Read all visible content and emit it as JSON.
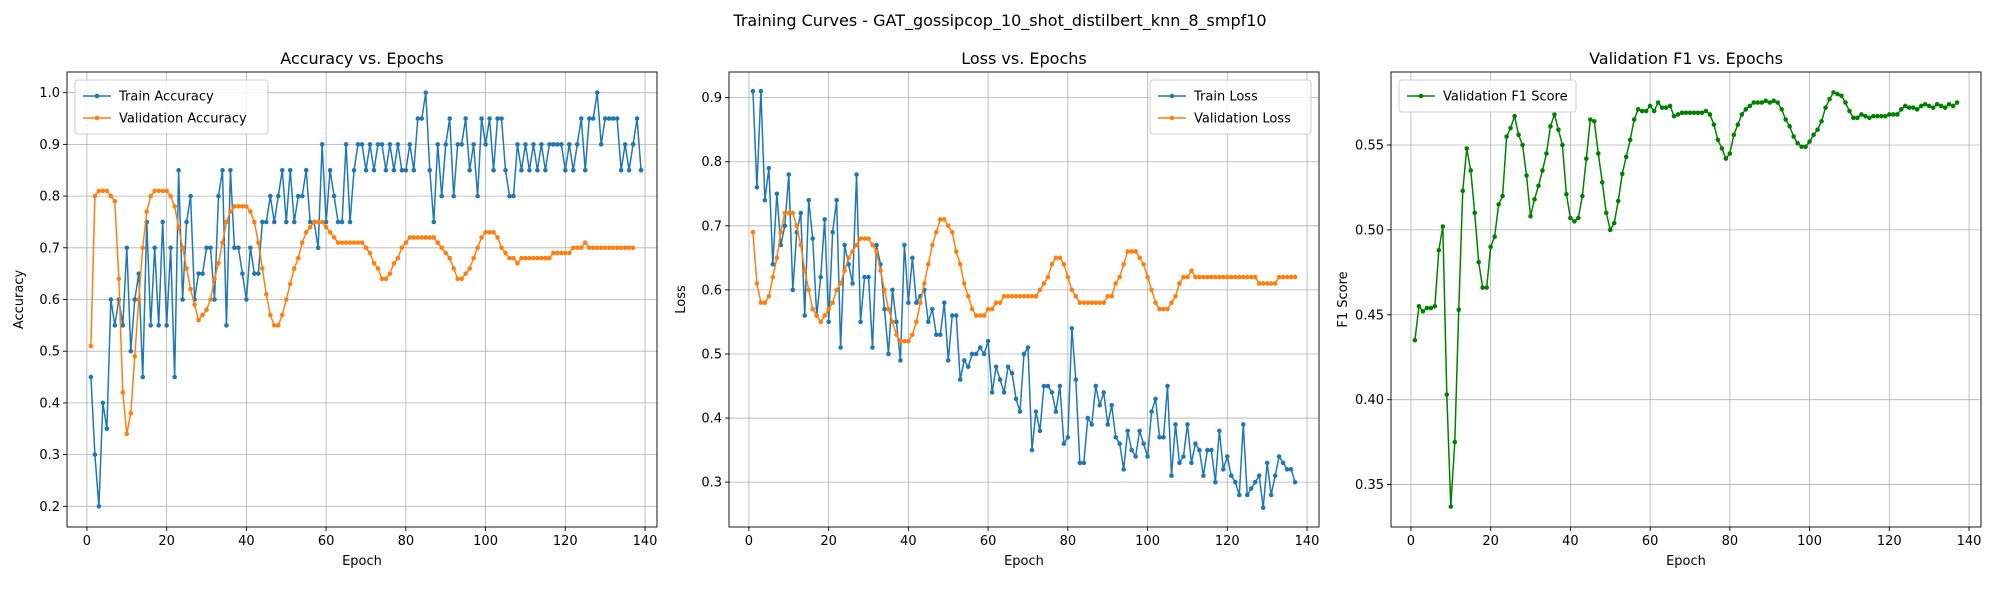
{
  "figure": {
    "suptitle": "Training Curves - GAT_gossipcop_10_shot_distilbert_knn_8_smpf10"
  },
  "colors": {
    "train": "#1f77b4",
    "val": "#ff7f0e",
    "f1": "#008000",
    "grid": "#b0b0b0"
  },
  "chart_data": [
    {
      "type": "line",
      "title": "Accuracy vs. Epochs",
      "xlabel": "Epoch",
      "ylabel": "Accuracy",
      "xlim": [
        -5,
        143
      ],
      "ylim": [
        0.16,
        1.04
      ],
      "xticks": [
        0,
        20,
        40,
        60,
        80,
        100,
        120,
        140
      ],
      "yticks": [
        0.2,
        0.3,
        0.4,
        0.5,
        0.6,
        0.7,
        0.8,
        0.9,
        1.0
      ],
      "ytick_labels": [
        "0.2",
        "0.3",
        "0.4",
        "0.5",
        "0.6",
        "0.7",
        "0.8",
        "0.9",
        "1.0"
      ],
      "grid": true,
      "legend_position": "upper left",
      "x_start": 1,
      "series": [
        {
          "name": "Train Accuracy",
          "color": "#1f77b4",
          "values": [
            0.45,
            0.3,
            0.2,
            0.4,
            0.35,
            0.6,
            0.55,
            0.6,
            0.55,
            0.7,
            0.5,
            0.6,
            0.65,
            0.45,
            0.75,
            0.55,
            0.7,
            0.55,
            0.75,
            0.55,
            0.7,
            0.45,
            0.85,
            0.6,
            0.75,
            0.8,
            0.6,
            0.65,
            0.65,
            0.7,
            0.7,
            0.6,
            0.8,
            0.85,
            0.55,
            0.85,
            0.7,
            0.7,
            0.65,
            0.6,
            0.7,
            0.65,
            0.65,
            0.75,
            0.75,
            0.8,
            0.75,
            0.8,
            0.85,
            0.75,
            0.85,
            0.75,
            0.8,
            0.8,
            0.85,
            0.75,
            0.75,
            0.7,
            0.9,
            0.75,
            0.85,
            0.8,
            0.75,
            0.75,
            0.9,
            0.75,
            0.85,
            0.9,
            0.9,
            0.85,
            0.9,
            0.85,
            0.9,
            0.9,
            0.85,
            0.9,
            0.85,
            0.9,
            0.85,
            0.85,
            0.9,
            0.85,
            0.95,
            0.95,
            1.0,
            0.85,
            0.75,
            0.9,
            0.8,
            0.9,
            0.95,
            0.8,
            0.9,
            0.9,
            0.95,
            0.85,
            0.9,
            0.8,
            0.95,
            0.9,
            0.95,
            0.85,
            0.95,
            0.95,
            0.85,
            0.8,
            0.8,
            0.9,
            0.85,
            0.9,
            0.85,
            0.9,
            0.85,
            0.9,
            0.85,
            0.9,
            0.9,
            0.9,
            0.9,
            0.85,
            0.9,
            0.85,
            0.9,
            0.95,
            0.85,
            0.95,
            0.95,
            1.0,
            0.9,
            0.95,
            0.95,
            0.95,
            0.95,
            0.85,
            0.9,
            0.85,
            0.9,
            0.95,
            0.85
          ]
        },
        {
          "name": "Validation Accuracy",
          "color": "#ff7f0e",
          "values": [
            0.51,
            0.8,
            0.81,
            0.81,
            0.81,
            0.8,
            0.79,
            0.64,
            0.42,
            0.34,
            0.38,
            0.49,
            0.6,
            0.7,
            0.77,
            0.8,
            0.81,
            0.81,
            0.81,
            0.81,
            0.8,
            0.78,
            0.74,
            0.7,
            0.66,
            0.62,
            0.59,
            0.56,
            0.57,
            0.58,
            0.6,
            0.64,
            0.67,
            0.71,
            0.75,
            0.77,
            0.78,
            0.78,
            0.78,
            0.78,
            0.77,
            0.75,
            0.71,
            0.66,
            0.61,
            0.57,
            0.55,
            0.55,
            0.57,
            0.6,
            0.63,
            0.66,
            0.68,
            0.71,
            0.73,
            0.74,
            0.75,
            0.75,
            0.75,
            0.74,
            0.73,
            0.72,
            0.71,
            0.71,
            0.71,
            0.71,
            0.71,
            0.71,
            0.71,
            0.7,
            0.69,
            0.67,
            0.66,
            0.64,
            0.64,
            0.65,
            0.67,
            0.68,
            0.7,
            0.71,
            0.72,
            0.72,
            0.72,
            0.72,
            0.72,
            0.72,
            0.72,
            0.71,
            0.7,
            0.69,
            0.68,
            0.66,
            0.64,
            0.64,
            0.65,
            0.66,
            0.68,
            0.7,
            0.72,
            0.73,
            0.73,
            0.73,
            0.72,
            0.7,
            0.69,
            0.68,
            0.68,
            0.67,
            0.68,
            0.68,
            0.68,
            0.68,
            0.68,
            0.68,
            0.68,
            0.68,
            0.69,
            0.69,
            0.69,
            0.69,
            0.69,
            0.7,
            0.7,
            0.7,
            0.71,
            0.7,
            0.7,
            0.7,
            0.7,
            0.7,
            0.7,
            0.7,
            0.7,
            0.7,
            0.7,
            0.7,
            0.7
          ]
        }
      ]
    },
    {
      "type": "line",
      "title": "Loss vs. Epochs",
      "xlabel": "Epoch",
      "ylabel": "Loss",
      "xlim": [
        -5,
        143
      ],
      "ylim": [
        0.23,
        0.94
      ],
      "xticks": [
        0,
        20,
        40,
        60,
        80,
        100,
        120,
        140
      ],
      "yticks": [
        0.3,
        0.4,
        0.5,
        0.6,
        0.7,
        0.8,
        0.9
      ],
      "ytick_labels": [
        "0.3",
        "0.4",
        "0.5",
        "0.6",
        "0.7",
        "0.8",
        "0.9"
      ],
      "grid": true,
      "legend_position": "upper right",
      "x_start": 1,
      "series": [
        {
          "name": "Train Loss",
          "color": "#1f77b4",
          "values": [
            0.91,
            0.76,
            0.91,
            0.74,
            0.79,
            0.64,
            0.75,
            0.67,
            0.7,
            0.78,
            0.6,
            0.69,
            0.72,
            0.56,
            0.74,
            0.68,
            0.56,
            0.62,
            0.71,
            0.55,
            0.69,
            0.74,
            0.51,
            0.67,
            0.64,
            0.61,
            0.78,
            0.55,
            0.62,
            0.62,
            0.51,
            0.67,
            0.64,
            0.57,
            0.5,
            0.6,
            0.55,
            0.49,
            0.67,
            0.58,
            0.65,
            0.58,
            0.59,
            0.6,
            0.55,
            0.57,
            0.53,
            0.53,
            0.58,
            0.49,
            0.56,
            0.56,
            0.46,
            0.49,
            0.48,
            0.5,
            0.5,
            0.51,
            0.5,
            0.52,
            0.44,
            0.48,
            0.46,
            0.44,
            0.48,
            0.47,
            0.43,
            0.41,
            0.5,
            0.51,
            0.35,
            0.41,
            0.38,
            0.45,
            0.45,
            0.44,
            0.41,
            0.45,
            0.36,
            0.37,
            0.54,
            0.46,
            0.33,
            0.33,
            0.4,
            0.39,
            0.45,
            0.42,
            0.44,
            0.39,
            0.42,
            0.37,
            0.36,
            0.32,
            0.38,
            0.35,
            0.34,
            0.38,
            0.36,
            0.34,
            0.41,
            0.43,
            0.37,
            0.37,
            0.45,
            0.31,
            0.39,
            0.33,
            0.34,
            0.39,
            0.33,
            0.36,
            0.35,
            0.31,
            0.35,
            0.35,
            0.3,
            0.38,
            0.32,
            0.34,
            0.31,
            0.3,
            0.28,
            0.39,
            0.28,
            0.29,
            0.3,
            0.31,
            0.26,
            0.33,
            0.28,
            0.31,
            0.34,
            0.33,
            0.32,
            0.32,
            0.3
          ]
        },
        {
          "name": "Validation Loss",
          "color": "#ff7f0e",
          "values": [
            0.69,
            0.61,
            0.58,
            0.58,
            0.59,
            0.62,
            0.65,
            0.69,
            0.72,
            0.72,
            0.72,
            0.7,
            0.67,
            0.63,
            0.6,
            0.57,
            0.56,
            0.55,
            0.56,
            0.57,
            0.58,
            0.6,
            0.61,
            0.63,
            0.65,
            0.66,
            0.67,
            0.68,
            0.68,
            0.68,
            0.67,
            0.66,
            0.63,
            0.6,
            0.57,
            0.55,
            0.53,
            0.52,
            0.52,
            0.52,
            0.53,
            0.55,
            0.58,
            0.61,
            0.64,
            0.67,
            0.69,
            0.71,
            0.71,
            0.7,
            0.69,
            0.66,
            0.64,
            0.61,
            0.59,
            0.57,
            0.56,
            0.56,
            0.56,
            0.57,
            0.57,
            0.58,
            0.58,
            0.59,
            0.59,
            0.59,
            0.59,
            0.59,
            0.59,
            0.59,
            0.59,
            0.59,
            0.6,
            0.61,
            0.62,
            0.64,
            0.65,
            0.65,
            0.64,
            0.62,
            0.6,
            0.59,
            0.58,
            0.58,
            0.58,
            0.58,
            0.58,
            0.58,
            0.58,
            0.59,
            0.59,
            0.61,
            0.62,
            0.64,
            0.66,
            0.66,
            0.66,
            0.65,
            0.64,
            0.62,
            0.6,
            0.58,
            0.57,
            0.57,
            0.57,
            0.58,
            0.59,
            0.61,
            0.62,
            0.62,
            0.63,
            0.62,
            0.62,
            0.62,
            0.62,
            0.62,
            0.62,
            0.62,
            0.62,
            0.62,
            0.62,
            0.62,
            0.62,
            0.62,
            0.62,
            0.62,
            0.62,
            0.61,
            0.61,
            0.61,
            0.61,
            0.61,
            0.62,
            0.62,
            0.62,
            0.62,
            0.62
          ]
        }
      ]
    },
    {
      "type": "line",
      "title": "Validation F1 vs. Epochs",
      "xlabel": "Epoch",
      "ylabel": "F1 Score",
      "xlim": [
        -5,
        143
      ],
      "ylim": [
        0.325,
        0.593
      ],
      "xticks": [
        0,
        20,
        40,
        60,
        80,
        100,
        120,
        140
      ],
      "yticks": [
        0.35,
        0.4,
        0.45,
        0.5,
        0.55
      ],
      "ytick_labels": [
        "0.35",
        "0.40",
        "0.45",
        "0.50",
        "0.55"
      ],
      "grid": true,
      "legend_position": "upper left",
      "x_start": 1,
      "series": [
        {
          "name": "Validation F1 Score",
          "color": "#008000",
          "values": [
            0.435,
            0.455,
            0.452,
            0.454,
            0.454,
            0.455,
            0.488,
            0.502,
            0.403,
            0.337,
            0.375,
            0.453,
            0.523,
            0.548,
            0.535,
            0.51,
            0.481,
            0.466,
            0.466,
            0.49,
            0.496,
            0.515,
            0.52,
            0.555,
            0.56,
            0.567,
            0.556,
            0.55,
            0.532,
            0.508,
            0.518,
            0.526,
            0.535,
            0.545,
            0.561,
            0.568,
            0.559,
            0.55,
            0.521,
            0.507,
            0.505,
            0.507,
            0.52,
            0.542,
            0.565,
            0.564,
            0.545,
            0.528,
            0.51,
            0.5,
            0.504,
            0.517,
            0.533,
            0.543,
            0.553,
            0.565,
            0.571,
            0.57,
            0.57,
            0.573,
            0.57,
            0.575,
            0.572,
            0.572,
            0.573,
            0.567,
            0.568,
            0.569,
            0.569,
            0.569,
            0.569,
            0.569,
            0.569,
            0.57,
            0.568,
            0.562,
            0.553,
            0.548,
            0.542,
            0.545,
            0.556,
            0.562,
            0.568,
            0.571,
            0.573,
            0.575,
            0.575,
            0.575,
            0.576,
            0.575,
            0.576,
            0.575,
            0.571,
            0.565,
            0.561,
            0.555,
            0.551,
            0.549,
            0.549,
            0.552,
            0.556,
            0.559,
            0.564,
            0.572,
            0.577,
            0.581,
            0.58,
            0.579,
            0.575,
            0.57,
            0.566,
            0.566,
            0.568,
            0.567,
            0.566,
            0.567,
            0.567,
            0.567,
            0.567,
            0.568,
            0.568,
            0.568,
            0.571,
            0.573,
            0.572,
            0.572,
            0.571,
            0.573,
            0.574,
            0.573,
            0.572,
            0.574,
            0.573,
            0.572,
            0.574,
            0.573,
            0.575
          ]
        }
      ]
    }
  ]
}
